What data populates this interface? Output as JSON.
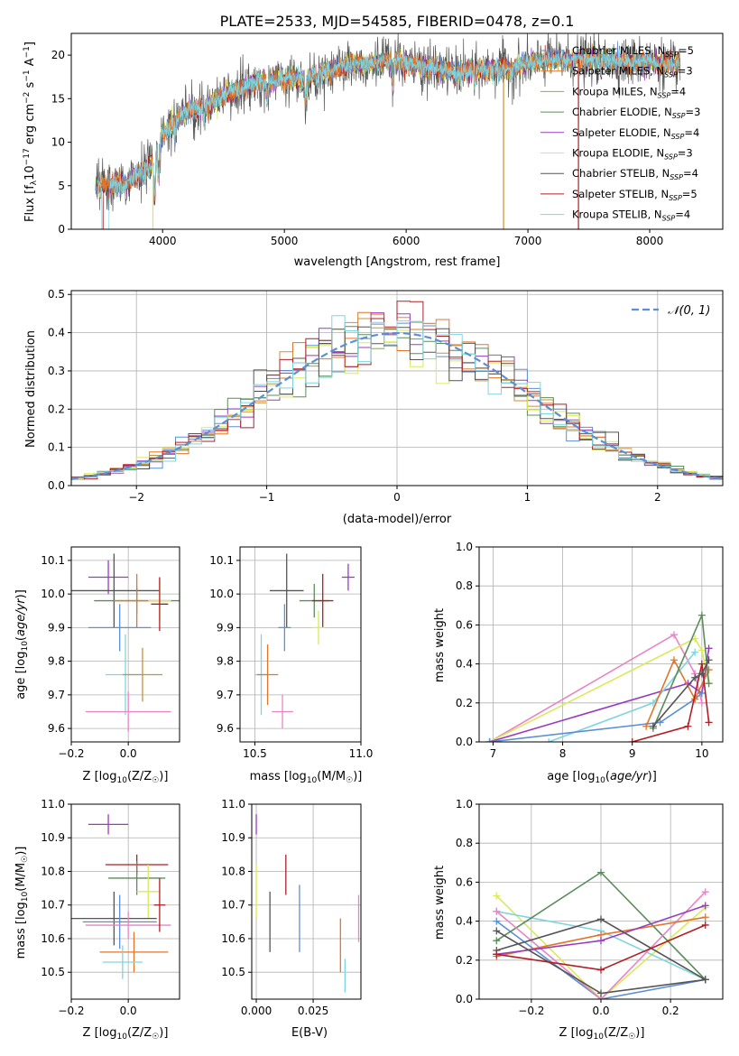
{
  "figure": {
    "title": "PLATE=2533, MJD=54585, FIBERID=0478, z=0.1"
  },
  "colors": {
    "chabrier_miles": "#5b8fd6",
    "salpeter_miles": "#e0762b",
    "kroupa_miles": "#c89238",
    "chabrier_elodie": "#5c8c5c",
    "salpeter_elodie": "#9a3bbf",
    "kroupa_elodie": "#d9ea5a",
    "chabrier_stelib": "#555555",
    "salpeter_stelib": "#b11f24",
    "kroupa_stelib": "#7fd5df",
    "extra_pink": "#e885c4",
    "normal_curve": "#5b8fd6",
    "grid": "#b0b0b0"
  },
  "chart_data": [
    {
      "id": "spectrum",
      "type": "line",
      "xlabel": "wavelength [Angstrom, rest frame]",
      "ylabel": "Flux [f_λ10^-17 erg cm^-2 s^-1 A^-1]",
      "xlim": [
        3250,
        8600
      ],
      "ylim": [
        0,
        22.5
      ],
      "xticks": [
        4000,
        5000,
        6000,
        7000,
        8000
      ],
      "yticks": [
        0,
        5,
        10,
        15,
        20
      ],
      "grid": false,
      "legend": "top-right",
      "continuum": [
        [
          3450,
          5.0
        ],
        [
          3700,
          5.3
        ],
        [
          3900,
          7.3
        ],
        [
          4000,
          11.0
        ],
        [
          4200,
          13.5
        ],
        [
          4400,
          14.5
        ],
        [
          4600,
          16.0
        ],
        [
          4800,
          17.0
        ],
        [
          5000,
          17.2
        ],
        [
          5200,
          17.5
        ],
        [
          5400,
          18.5
        ],
        [
          5600,
          19.0
        ],
        [
          5800,
          19.3
        ],
        [
          5900,
          19.5
        ],
        [
          6000,
          19.0
        ],
        [
          6200,
          18.5
        ],
        [
          6400,
          18.0
        ],
        [
          6600,
          18.3
        ],
        [
          6800,
          18.5
        ],
        [
          7000,
          19.0
        ],
        [
          7200,
          19.5
        ],
        [
          7400,
          19.5
        ],
        [
          7600,
          19.5
        ],
        [
          7800,
          19.2
        ],
        [
          8000,
          19.3
        ],
        [
          8200,
          18.8
        ],
        [
          8250,
          19.2
        ]
      ],
      "series": [
        {
          "name": "Chabrier MILES, N_SSP=5"
        },
        {
          "name": "Salpeter MILES, N_SSP=3"
        },
        {
          "name": "Kroupa MILES, N_SSP=4"
        },
        {
          "name": "Chabrier ELODIE, N_SSP=3"
        },
        {
          "name": "Salpeter ELODIE, N_SSP=4"
        },
        {
          "name": "Kroupa ELODIE, N_SSP=3"
        },
        {
          "name": "Chabrier STELIB, N_SSP=4"
        },
        {
          "name": "Salpeter STELIB, N_SSP=5"
        },
        {
          "name": "Kroupa STELIB, N_SSP=4"
        }
      ],
      "legend_entries": [
        {
          "prefix": "Chabrier MILES, N",
          "sub": "SSP",
          "suffix": "=5",
          "color": "#5b8fd6"
        },
        {
          "prefix": "Salpeter MILES, N",
          "sub": "SSP",
          "suffix": "=3",
          "color": "#e0762b"
        },
        {
          "prefix": "Kroupa MILES, N",
          "sub": "SSP",
          "suffix": "=4",
          "color": "#c89238"
        },
        {
          "prefix": "Chabrier ELODIE, N",
          "sub": "SSP",
          "suffix": "=3",
          "color": "#5c8c5c"
        },
        {
          "prefix": "Salpeter ELODIE, N",
          "sub": "SSP",
          "suffix": "=4",
          "color": "#9a3bbf"
        },
        {
          "prefix": "Kroupa ELODIE, N",
          "sub": "SSP",
          "suffix": "=3",
          "color": "#d9ea5a"
        },
        {
          "prefix": "Chabrier STELIB, N",
          "sub": "SSP",
          "suffix": "=4",
          "color": "#555555"
        },
        {
          "prefix": "Salpeter STELIB, N",
          "sub": "SSP",
          "suffix": "=5",
          "color": "#b11f24"
        },
        {
          "prefix": "Kroupa STELIB, N",
          "sub": "SSP",
          "suffix": "=4",
          "color": "#7fd5df"
        }
      ]
    },
    {
      "id": "residuals",
      "type": "line",
      "xlabel": "(data-model)/error",
      "ylabel": "Normed distribution",
      "xlim": [
        -2.5,
        2.5
      ],
      "ylim": [
        0,
        0.51
      ],
      "xticks": [
        -2,
        -1,
        0,
        1,
        2
      ],
      "yticks": [
        0.0,
        0.1,
        0.2,
        0.3,
        0.4,
        0.5
      ],
      "grid": true,
      "legend": "top-right",
      "legend_label": "N(0,1)",
      "bin_width": 0.1,
      "series": [
        {
          "name": "Normal N(0,1)",
          "kind": "curve"
        }
      ]
    },
    {
      "id": "age_vs_Z",
      "type": "scatter",
      "xlabel": "Z [log10(Z/Z_sun)]",
      "ylabel": "age [log10(age/yr)]",
      "xlim": [
        -0.2,
        0.18
      ],
      "ylim": [
        9.56,
        10.14
      ],
      "xticks": [
        -0.2,
        0.0
      ],
      "yticks": [
        9.6,
        9.7,
        9.8,
        9.9,
        10.0,
        10.1
      ],
      "grid": true,
      "points": [
        {
          "x": -0.07,
          "xerr": 0.07,
          "y": 10.05,
          "yerr": 0.05,
          "color": "#9a3bbf"
        },
        {
          "x": -0.05,
          "xerr": 0.16,
          "y": 10.01,
          "yerr": 0.11,
          "color": "#555555"
        },
        {
          "x": 0.03,
          "xerr": 0.15,
          "y": 9.98,
          "yerr": 0.04,
          "color": "#5c8c5c"
        },
        {
          "x": 0.03,
          "xerr": 0.08,
          "y": 9.98,
          "yerr": 0.08,
          "color": "#e0762b"
        },
        {
          "x": 0.11,
          "xerr": 0.04,
          "y": 9.98,
          "yerr": 0.06,
          "color": "#d9ea5a"
        },
        {
          "x": 0.11,
          "xerr": 0.03,
          "y": 9.97,
          "yerr": 0.08,
          "color": "#b11f24"
        },
        {
          "x": -0.03,
          "xerr": 0.11,
          "y": 9.9,
          "yerr": 0.07,
          "color": "#5b8fd6"
        },
        {
          "x": -0.01,
          "xerr": 0.07,
          "y": 9.76,
          "yerr": 0.12,
          "color": "#7fd5df"
        },
        {
          "x": 0.05,
          "xerr": 0.07,
          "y": 9.76,
          "yerr": 0.08,
          "color": "#c89238"
        },
        {
          "x": 0.0,
          "xerr": 0.15,
          "y": 9.65,
          "yerr": 0.06,
          "color": "#e885c4"
        }
      ]
    },
    {
      "id": "age_vs_mass",
      "type": "scatter",
      "xlabel": "mass [log10(M/M_sun)]",
      "ylabel": "",
      "xlim": [
        10.43,
        11.0
      ],
      "ylim": [
        9.56,
        10.14
      ],
      "xticks": [
        10.5,
        11.0
      ],
      "yticks": [
        9.6,
        9.7,
        9.8,
        9.9,
        10.0,
        10.1
      ],
      "grid": true,
      "points": [
        {
          "x": 10.94,
          "xerr": 0.03,
          "y": 10.05,
          "yerr": 0.04,
          "color": "#9a3bbf"
        },
        {
          "x": 10.65,
          "xerr": 0.08,
          "y": 10.01,
          "yerr": 0.11,
          "color": "#555555"
        },
        {
          "x": 10.78,
          "xerr": 0.07,
          "y": 9.98,
          "yerr": 0.05,
          "color": "#5c8c5c"
        },
        {
          "x": 10.82,
          "xerr": 0.05,
          "y": 9.98,
          "yerr": 0.08,
          "color": "#b11f24"
        },
        {
          "x": 10.8,
          "xerr": 0.03,
          "y": 9.9,
          "yerr": 0.05,
          "color": "#d9ea5a"
        },
        {
          "x": 10.64,
          "xerr": 0.03,
          "y": 9.9,
          "yerr": 0.07,
          "color": "#5b8fd6"
        },
        {
          "x": 10.53,
          "xerr": 0.03,
          "y": 9.76,
          "yerr": 0.12,
          "color": "#7fd5df"
        },
        {
          "x": 10.56,
          "xerr": 0.05,
          "y": 9.76,
          "yerr": 0.09,
          "color": "#e0762b"
        },
        {
          "x": 10.63,
          "xerr": 0.05,
          "y": 9.65,
          "yerr": 0.05,
          "color": "#e885c4"
        }
      ]
    },
    {
      "id": "weight_vs_age",
      "type": "line",
      "xlabel": "age [log10(age/yr)]",
      "ylabel": "mass weight",
      "xlim": [
        6.8,
        10.3
      ],
      "ylim": [
        0.0,
        1.0
      ],
      "xticks": [
        7,
        8,
        9,
        10
      ],
      "yticks": [
        0.0,
        0.2,
        0.4,
        0.6,
        0.8,
        1.0
      ],
      "grid": true,
      "series": [
        {
          "x": [
            6.95,
            9.6,
            9.9,
            10.0
          ],
          "y": [
            0.0,
            0.55,
            0.35,
            0.2
          ],
          "color": "#e885c4"
        },
        {
          "x": [
            6.95,
            9.9,
            10.0,
            10.1
          ],
          "y": [
            0.0,
            0.53,
            0.47,
            0.3
          ],
          "color": "#d9ea5a"
        },
        {
          "x": [
            6.95,
            9.8,
            10.0,
            10.1
          ],
          "y": [
            0.0,
            0.3,
            0.25,
            0.48
          ],
          "color": "#9a3bbf"
        },
        {
          "x": [
            7.8,
            9.3,
            9.9
          ],
          "y": [
            0.0,
            0.2,
            0.46
          ],
          "color": "#7fd5df"
        },
        {
          "x": [
            6.95,
            9.4,
            9.9,
            10.0
          ],
          "y": [
            0.0,
            0.1,
            0.22,
            0.25
          ],
          "color": "#5b8fd6"
        },
        {
          "x": [
            9.2,
            9.6,
            9.9,
            10.1
          ],
          "y": [
            0.08,
            0.42,
            0.22,
            0.37
          ],
          "color": "#e0762b"
        },
        {
          "x": [
            9.3,
            10.0,
            10.1
          ],
          "y": [
            0.07,
            0.65,
            0.3
          ],
          "color": "#5c8c5c"
        },
        {
          "x": [
            9.0,
            9.8,
            10.0,
            10.1
          ],
          "y": [
            0.0,
            0.08,
            0.4,
            0.1
          ],
          "color": "#b11f24"
        },
        {
          "x": [
            9.3,
            9.9,
            10.0,
            10.1
          ],
          "y": [
            0.08,
            0.33,
            0.35,
            0.42
          ],
          "color": "#555555"
        }
      ]
    },
    {
      "id": "mass_vs_Z",
      "type": "scatter",
      "xlabel": "Z [log10(Z/Z_sun)]",
      "ylabel": "mass [log10(M/M_sun)]",
      "xlim": [
        -0.2,
        0.18
      ],
      "ylim": [
        10.42,
        11.0
      ],
      "xticks": [
        -0.2,
        0.0
      ],
      "yticks": [
        10.5,
        10.6,
        10.7,
        10.8,
        10.9,
        11.0
      ],
      "grid": true,
      "points": [
        {
          "x": -0.07,
          "xerr": 0.07,
          "y": 10.94,
          "yerr": 0.03,
          "color": "#9a3bbf"
        },
        {
          "x": 0.03,
          "xerr": 0.11,
          "y": 10.82,
          "yerr": 0.03,
          "color": "#b11f24"
        },
        {
          "x": 0.03,
          "xerr": 0.1,
          "y": 10.78,
          "yerr": 0.05,
          "color": "#5c8c5c"
        },
        {
          "x": 0.07,
          "xerr": 0.04,
          "y": 10.74,
          "yerr": 0.08,
          "color": "#d9ea5a"
        },
        {
          "x": -0.05,
          "xerr": 0.15,
          "y": 10.66,
          "yerr": 0.08,
          "color": "#555555"
        },
        {
          "x": -0.03,
          "xerr": 0.13,
          "y": 10.65,
          "yerr": 0.08,
          "color": "#5b8fd6"
        },
        {
          "x": 0.0,
          "xerr": 0.15,
          "y": 10.64,
          "yerr": 0.04,
          "color": "#e885c4"
        },
        {
          "x": 0.11,
          "xerr": 0.02,
          "y": 10.7,
          "yerr": 0.08,
          "color": "#b11f24"
        },
        {
          "x": 0.02,
          "xerr": 0.12,
          "y": 10.56,
          "yerr": 0.06,
          "color": "#e0762b"
        },
        {
          "x": -0.02,
          "xerr": 0.07,
          "y": 10.53,
          "yerr": 0.05,
          "color": "#7fd5df"
        }
      ]
    },
    {
      "id": "mass_vs_EBV",
      "type": "scatter",
      "xlabel": "E(B-V)",
      "ylabel": "",
      "xlim": [
        -0.002,
        0.046
      ],
      "ylim": [
        10.42,
        11.0
      ],
      "xticks": [
        0.0,
        0.025
      ],
      "xtick_labels": [
        "0.000",
        "0.025"
      ],
      "yticks": [
        10.5,
        10.6,
        10.7,
        10.8,
        10.9,
        11.0
      ],
      "grid": true,
      "points": [
        {
          "x": 0.0,
          "y": 10.94,
          "yerr": 0.03,
          "color": "#9a3bbf"
        },
        {
          "x": 0.0,
          "y": 10.74,
          "yerr": 0.08,
          "color": "#d9ea5a"
        },
        {
          "x": 0.006,
          "y": 10.65,
          "yerr": 0.09,
          "color": "#555555"
        },
        {
          "x": 0.013,
          "y": 10.79,
          "yerr": 0.06,
          "color": "#b11f24"
        },
        {
          "x": 0.019,
          "y": 10.66,
          "yerr": 0.1,
          "color": "#5b8fd6"
        },
        {
          "x": 0.037,
          "y": 10.58,
          "yerr": 0.08,
          "color": "#e0762b"
        },
        {
          "x": 0.039,
          "y": 10.49,
          "yerr": 0.05,
          "color": "#7fd5df"
        },
        {
          "x": 0.045,
          "y": 10.66,
          "yerr": 0.07,
          "color": "#e885c4"
        }
      ]
    },
    {
      "id": "weight_vs_Z",
      "type": "line",
      "xlabel": "Z [log10(Z/Z_sun)]",
      "ylabel": "mass weight",
      "xlim": [
        -0.35,
        0.35
      ],
      "ylim": [
        0.0,
        1.0
      ],
      "xticks": [
        -0.2,
        0.0,
        0.2
      ],
      "yticks": [
        0.0,
        0.2,
        0.4,
        0.6,
        0.8,
        1.0
      ],
      "grid": true,
      "series": [
        {
          "x": [
            -0.3,
            0.0,
            0.3
          ],
          "y": [
            0.53,
            0.0,
            0.47
          ],
          "color": "#d9ea5a"
        },
        {
          "x": [
            -0.3,
            0.0,
            0.3
          ],
          "y": [
            0.45,
            0.35,
            0.1
          ],
          "color": "#7fd5df"
        },
        {
          "x": [
            -0.3,
            0.0,
            0.3
          ],
          "y": [
            0.4,
            0.0,
            0.1
          ],
          "color": "#5b8fd6"
        },
        {
          "x": [
            -0.3,
            0.0,
            0.3
          ],
          "y": [
            0.3,
            0.65,
            0.1
          ],
          "color": "#5c8c5c"
        },
        {
          "x": [
            -0.3,
            0.0,
            0.3
          ],
          "y": [
            0.45,
            0.0,
            0.55
          ],
          "color": "#e885c4"
        },
        {
          "x": [
            -0.3,
            0.0,
            0.3
          ],
          "y": [
            0.22,
            0.33,
            0.42
          ],
          "color": "#e0762b"
        },
        {
          "x": [
            -0.3,
            0.0,
            0.3
          ],
          "y": [
            0.23,
            0.3,
            0.48
          ],
          "color": "#9a3bbf"
        },
        {
          "x": [
            -0.3,
            0.0,
            0.3
          ],
          "y": [
            0.35,
            0.03,
            0.1
          ],
          "color": "#555555"
        },
        {
          "x": [
            -0.3,
            0.0,
            0.3
          ],
          "y": [
            0.25,
            0.41,
            0.1
          ],
          "color": "#555555"
        },
        {
          "x": [
            -0.3,
            0.0,
            0.3
          ],
          "y": [
            0.23,
            0.15,
            0.38
          ],
          "color": "#b11f24"
        }
      ]
    }
  ]
}
